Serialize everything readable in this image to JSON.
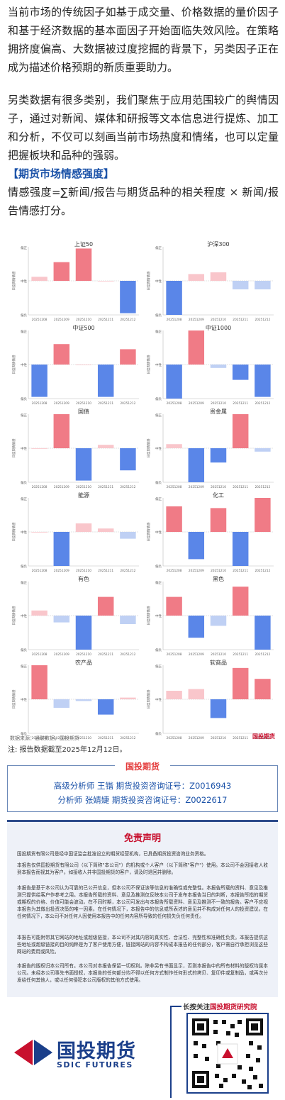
{
  "intro": {
    "p1": "当前市场的传统因子如基于成交量、价格数据的量价因子和基于经济数据的基本面因子开始面临失效风险。在策略拥挤度偏高、大数据被过度挖掘的背景下，另类因子正在成为描述价格预期的新质重要助力。",
    "p2": "另类数据有很多类别，我们聚焦于应用范围较广的舆情因子，通过对新闻、媒体和研报等文本信息进行提炼、加工和分析，不仅可以刻画当前市场热度和情绪，也可以定量把握板块和品种的强弱。",
    "section_title": "【期货市场情感强度】",
    "formula": "情感强度=∑新闻/报告与期货品种的相关程度 × 新闻/报告情感打分。"
  },
  "colors": {
    "pos_strong": "#f07b86",
    "pos_light": "#f9c6cb",
    "neg_strong": "#5a86e8",
    "neg_light": "#bfd0f4",
    "title_blue": "#1b52a8",
    "accent_red": "#c8102e"
  },
  "axis_text": {
    "ylabel": "日度舆情情感",
    "top": "偏正",
    "mid": "中性",
    "bottom": "偏负"
  },
  "chart_data": [
    {
      "type": "bar",
      "title": "上证50",
      "categories": [
        "20251208",
        "20251209",
        "20251210",
        "20251211",
        "20251212"
      ],
      "values": [
        0.12,
        0.55,
        0.95,
        0.0,
        -0.95
      ],
      "ylim": [
        -1,
        1
      ]
    },
    {
      "type": "bar",
      "title": "沪深300",
      "categories": [
        "20251208",
        "20251209",
        "20251210",
        "20251211",
        "20251212"
      ],
      "values": [
        -1.0,
        0.2,
        0.25,
        -0.25,
        -0.25
      ],
      "ylim": [
        -1,
        1
      ]
    },
    {
      "type": "bar",
      "title": "中证500",
      "categories": [
        "20251208",
        "20251209",
        "20251210",
        "20251211",
        "20251212"
      ],
      "values": [
        -0.95,
        0.6,
        0.0,
        -0.95,
        0.45
      ],
      "ylim": [
        -1,
        1
      ]
    },
    {
      "type": "bar",
      "title": "中证1000",
      "categories": [
        "20251208",
        "20251209",
        "20251210",
        "20251211",
        "20251212"
      ],
      "values": [
        -1.0,
        1.0,
        -0.1,
        -0.45,
        -0.95
      ],
      "ylim": [
        -1,
        1
      ]
    },
    {
      "type": "bar",
      "title": "国债",
      "categories": [
        "20251208",
        "20251209",
        "20251210",
        "20251211",
        "20251212"
      ],
      "values": [
        0.0,
        1.0,
        -0.95,
        0.1,
        -0.65
      ],
      "ylim": [
        -1,
        1
      ]
    },
    {
      "type": "bar",
      "title": "贵金属",
      "categories": [
        "20251208",
        "20251209",
        "20251210",
        "20251211",
        "20251212"
      ],
      "values": [
        0.12,
        -1.0,
        -0.42,
        1.0,
        -0.1
      ],
      "ylim": [
        -1,
        1
      ]
    },
    {
      "type": "bar",
      "title": "能源",
      "categories": [
        "20251208",
        "20251209",
        "20251210",
        "20251211",
        "20251212"
      ],
      "values": [
        0.0,
        -1.0,
        0.25,
        0.1,
        -0.2
      ],
      "ylim": [
        -1,
        1
      ]
    },
    {
      "type": "bar",
      "title": "化工",
      "categories": [
        "20251208",
        "20251209",
        "20251210",
        "20251211",
        "20251212"
      ],
      "values": [
        0.75,
        -0.8,
        0.7,
        -1.0,
        1.0
      ],
      "ylim": [
        -1,
        1
      ]
    },
    {
      "type": "bar",
      "title": "有色",
      "categories": [
        "20251208",
        "20251209",
        "20251210",
        "20251211",
        "20251212"
      ],
      "values": [
        0.15,
        -0.2,
        -1.0,
        0.55,
        -0.25
      ],
      "ylim": [
        -1,
        1
      ]
    },
    {
      "type": "bar",
      "title": "黑色",
      "categories": [
        "20251208",
        "20251209",
        "20251210",
        "20251211",
        "20251212"
      ],
      "values": [
        0.55,
        -0.65,
        -0.3,
        0.85,
        -1.0
      ],
      "ylim": [
        -1,
        1
      ]
    },
    {
      "type": "bar",
      "title": "农产品",
      "categories": [
        "20251208",
        "20251209",
        "20251210",
        "20251211",
        "20251212"
      ],
      "values": [
        1.0,
        -0.25,
        -0.05,
        -0.45,
        0.05
      ],
      "ylim": [
        -1,
        1
      ]
    },
    {
      "type": "bar",
      "title": "软商品",
      "categories": [
        "20251208",
        "20251209",
        "20251210",
        "20251211",
        "20251212"
      ],
      "values": [
        0.25,
        0.3,
        -0.55,
        0.92,
        0.6
      ],
      "ylim": [
        -1,
        1
      ]
    }
  ],
  "source": {
    "text": "数据来源：通联数据，国投期货",
    "logo": "国投期货"
  },
  "note": "注: 报告数据截至2025年12月12日。",
  "analysts": {
    "tag": "国投期货",
    "line1": "高级分析师  王锴  期货投资咨询证号：Z0016943",
    "line2": "分析师  张婧婕  期货投资咨询证号：Z0022617"
  },
  "disclaimer": {
    "title": "免责声明",
    "p1": "国投期货有限公司是经中国证监会批准设立的期货经营机构，已具备期货投资咨询业务资格。",
    "p2": "本报告仅供国投期货有限公司（以下简称\"本公司\"）的机构或个人客户（以下简称\"客户\"）使用。本公司不会因接收人收到本报告而视其为客户。如接收人并非国投期货的客户，请及时退回并删除。",
    "p3": "本报告是基于本公司认为可靠的已公开信息，但本公司不保证该等信息的准确性或完整性。本报告所载的资料、意见及推测只提供给客户作参考之用。本报告所载的资料、意见及推测仅反映本公司于发布本报告当日的判断，本报告所指的期货或期权的价格、价值可能会波动。在不同时期，本公司可发出与本报告所载资料、意见及推测不一致的报告。客户不应视本报告为其做出投资决策的唯一因素。在任何情况下，本报告中的信息或所表述的意见并不构成对任何人的投资建议。在任何情况下，本公司不对任何人因使用本报告中的任何内容所导致的任何损失负任何责任。",
    "p4": "本报告可能附带其它网站的地址或超级链接，本公司不对其内容的真实性、合法性、完整性和准确性负责。本报告提供这些地址或超级链接的目的纯粹是为了客户使用方便，链接网站的内容不构成本报告的任何部分，客户需自行承担浏览这些网站的费用或风险。",
    "p5": "本报告的版权归本公司所有。本公司对本报告保留一切权利。除非另有书面显示，否则本报告中的所有材料的版权均属本公司。未经本公司事先书面授权，本报告的任何部分均不得以任何方式制作任何形式的拷贝、复印件或复制品，或再次分发给任何其他人，或以任何侵犯本公司版权的其他方式使用。"
  },
  "footer": {
    "follow_prefix": "长按关注",
    "follow_name": "国投期货研究院",
    "logo_cn": "国投期货",
    "logo_en": "SDIC FUTURES",
    "qr_icon": "qr-code-icon"
  }
}
